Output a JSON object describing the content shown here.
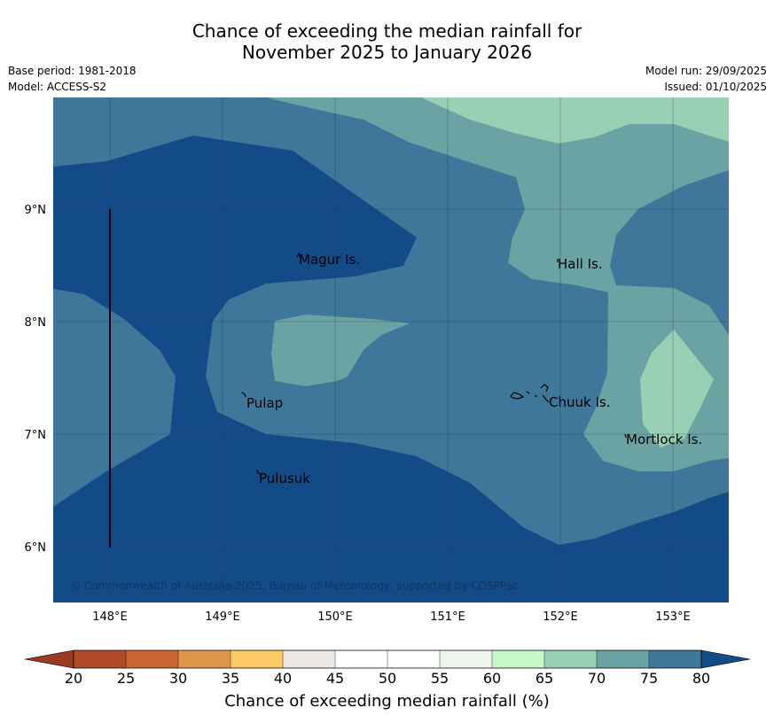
{
  "title": {
    "line1": "Chance of exceeding the median rainfall for",
    "line2": "November 2025 to January 2026"
  },
  "meta": {
    "base_period": "Base period: 1981-2018",
    "model": "Model: ACCESS-S2",
    "model_run": "Model run: 29/09/2025",
    "issued": "Issued: 01/10/2025"
  },
  "axes": {
    "y_ticks": [
      "9°N",
      "8°N",
      "7°N",
      "6°N"
    ],
    "x_ticks": [
      "148°E",
      "149°E",
      "150°E",
      "151°E",
      "152°E",
      "153°E"
    ]
  },
  "places": [
    "Magur Is.",
    "Hall Is.",
    "Pulap",
    "Chuuk Is.",
    "Mortlock Is.",
    "Pulusuk"
  ],
  "copyright": "© Commonwealth of Australia 2025, Bureau of Meteorology, supported by COSPPac",
  "colorbar": {
    "title": "Chance of exceeding median rainfall (%)",
    "ticks": [
      "20",
      "25",
      "30",
      "35",
      "40",
      "45",
      "50",
      "55",
      "60",
      "65",
      "70",
      "75",
      "80"
    ],
    "colors": [
      "#b04a2b",
      "#cd6533",
      "#e0954c",
      "#fccb66",
      "#ece9e6",
      "#ffffff",
      "#ffffff",
      "#eef5ec",
      "#c8f7c7",
      "#99cfb5",
      "#6ba2a3",
      "#3e7799"
    ],
    "under_color": "#9b3a22",
    "over_color": "#124b88"
  }
}
